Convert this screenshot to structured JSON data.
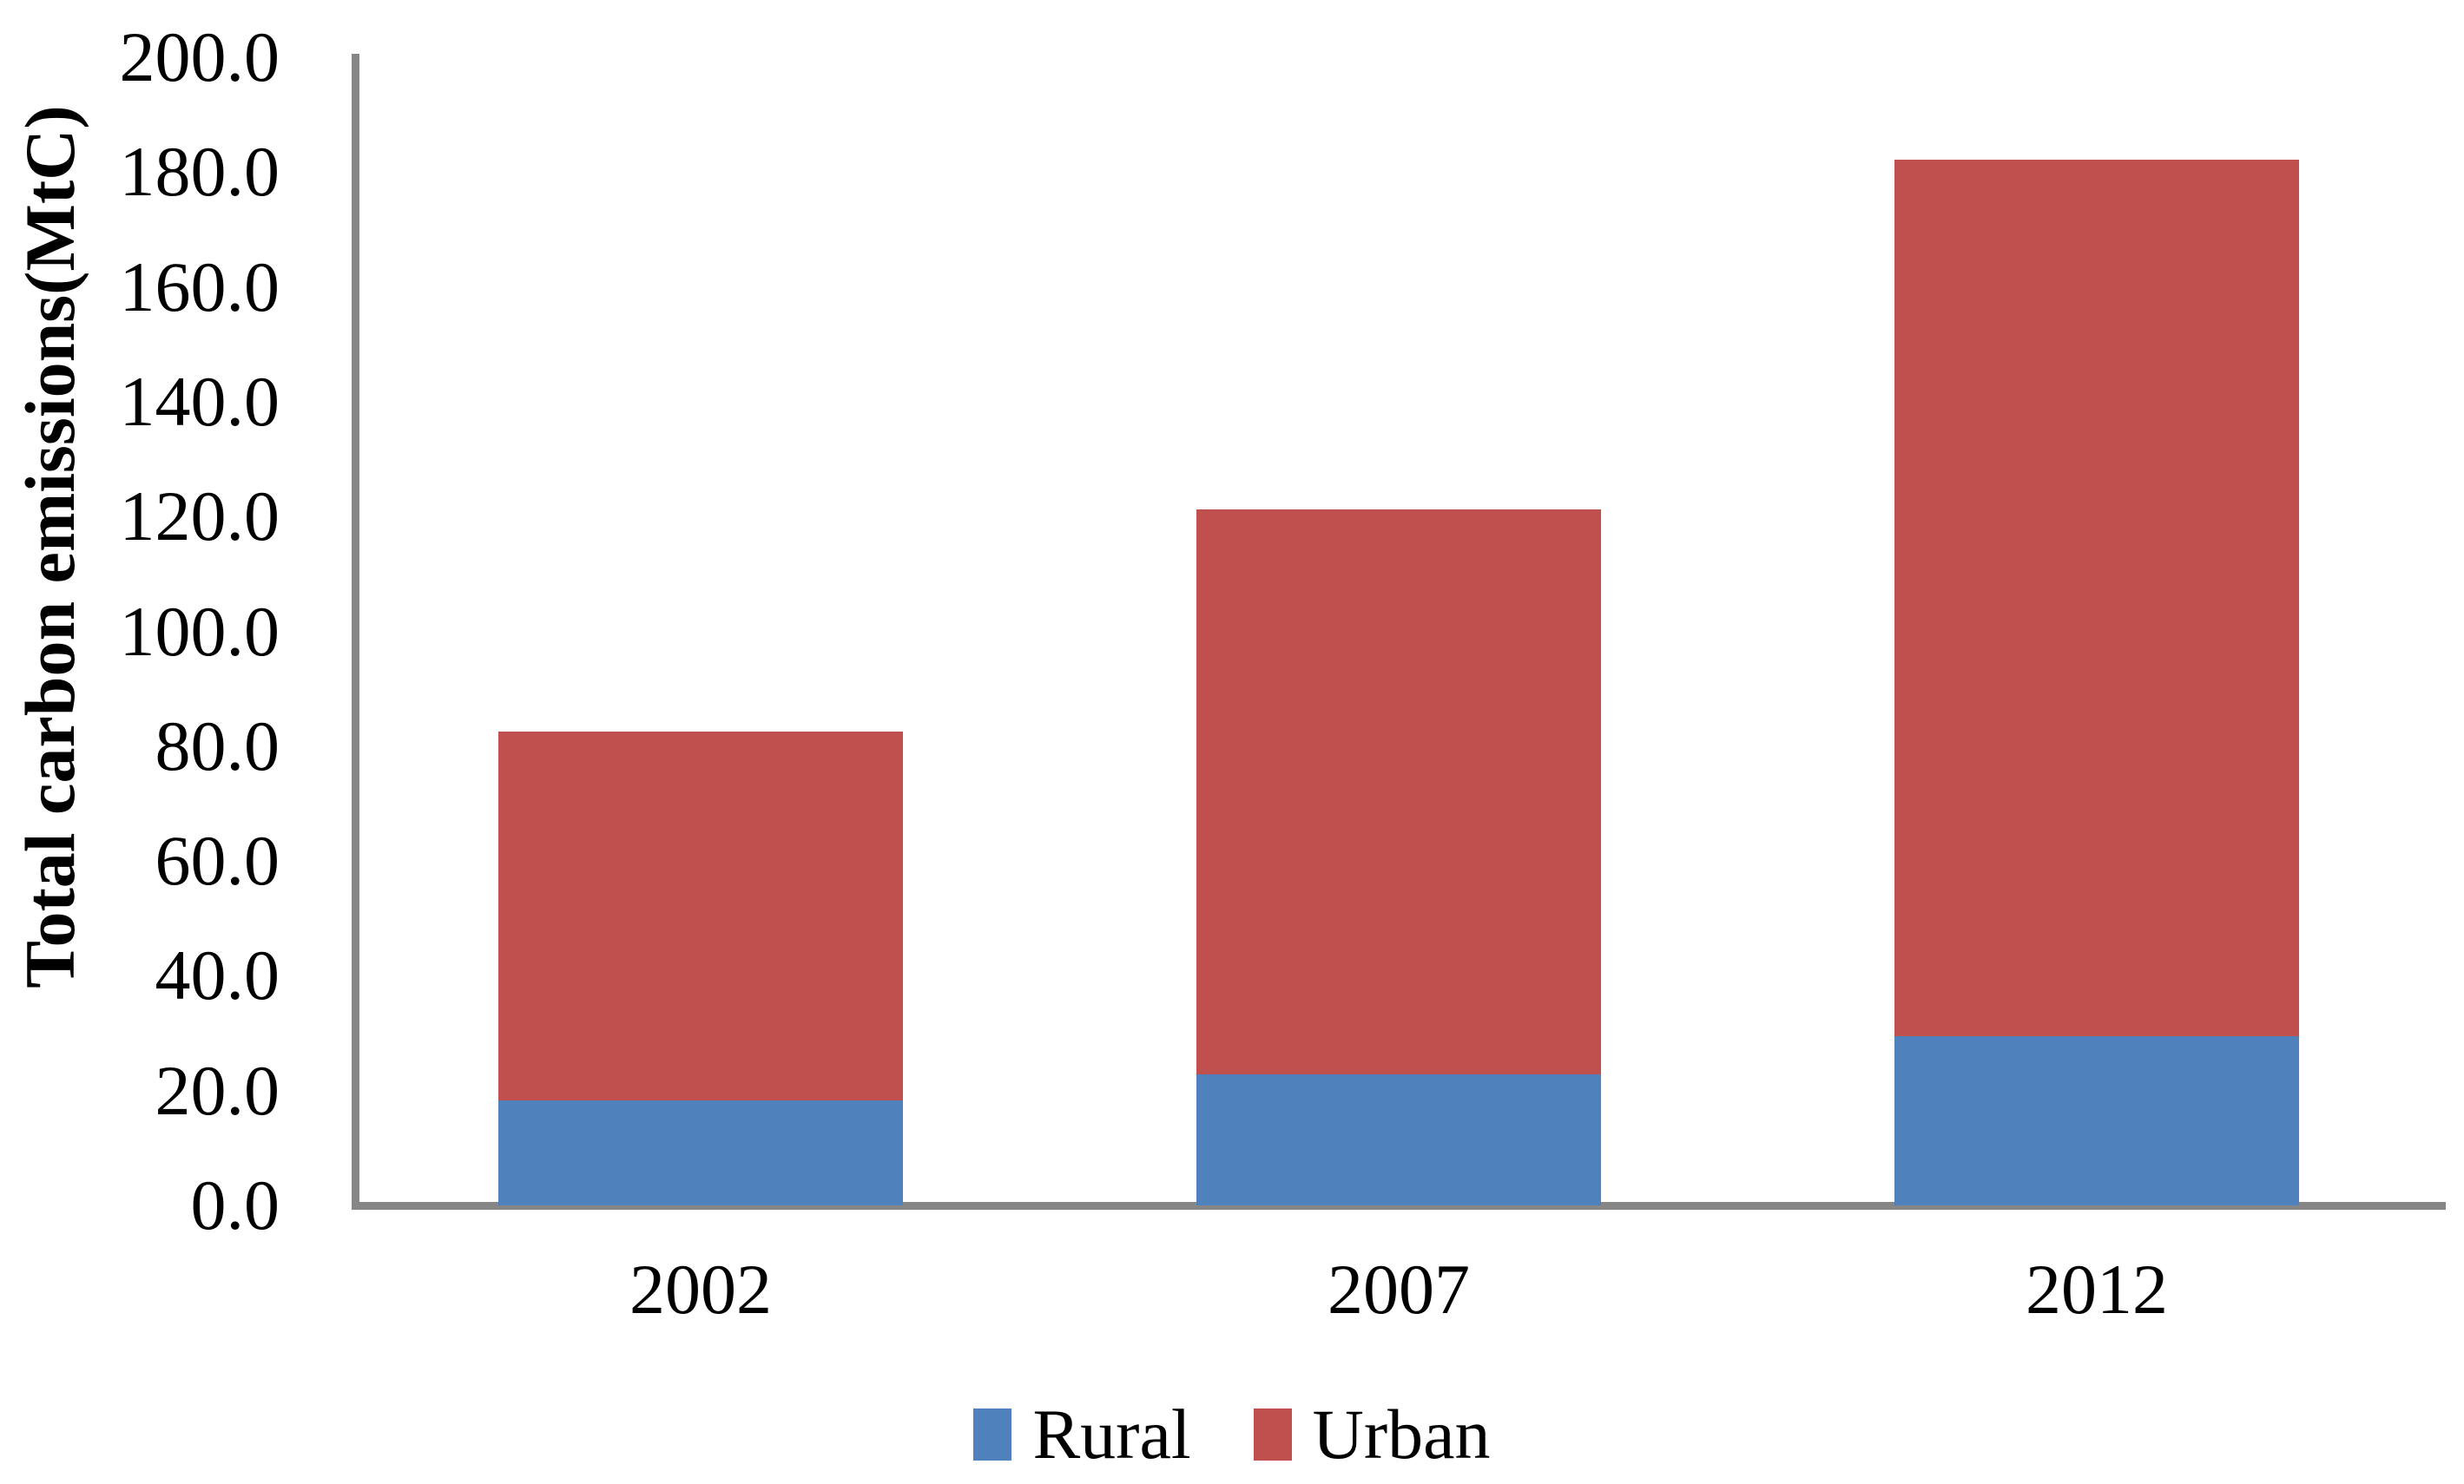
{
  "chart_data": {
    "type": "bar",
    "stacked": true,
    "title": "",
    "xlabel": "",
    "ylabel": "Total carbon emissions(MtC)",
    "categories": [
      "2002",
      "2007",
      "2012"
    ],
    "series": [
      {
        "name": "Rural",
        "color": "#4F81BD",
        "values": [
          18.3,
          22.8,
          29.5
        ]
      },
      {
        "name": "Urban",
        "color": "#C0504D",
        "values": [
          64.3,
          98.5,
          152.7
        ]
      }
    ],
    "stack_totals": [
      82.6,
      121.3,
      182.2
    ],
    "ylim": [
      0,
      200
    ],
    "ytick_step": 20,
    "ytick_labels": [
      "0.0",
      "20.0",
      "40.0",
      "60.0",
      "80.0",
      "100.0",
      "120.0",
      "140.0",
      "160.0",
      "180.0",
      "200.0"
    ],
    "grid": false,
    "legend_position": "bottom",
    "axis_color": "#868686",
    "text_color": "#000000",
    "background_color": "#FFFFFF"
  }
}
